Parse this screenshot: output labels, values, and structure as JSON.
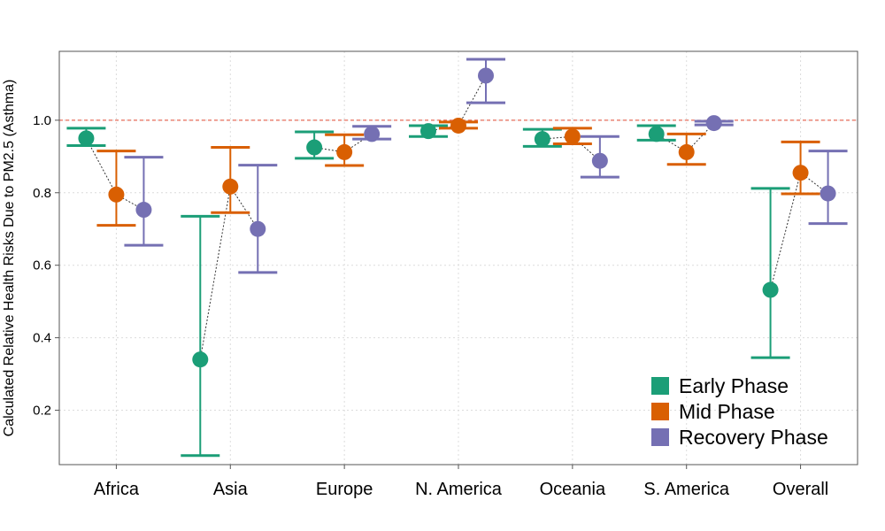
{
  "chart_data": {
    "type": "errorbar",
    "title": "",
    "xlabel": "",
    "ylabel": "Calculated Relative Health Risks Due to PM2.5 (Asthma)",
    "ylim": [
      0.05,
      1.19
    ],
    "yticks": [
      0.2,
      0.4,
      0.6,
      0.8,
      1.0
    ],
    "ytick_labels": [
      "0.2",
      "0.4",
      "0.6",
      "0.8",
      "1.0"
    ],
    "reference_line": 1.0,
    "reference_color": "#e34a33",
    "grid": true,
    "legend_position": "bottom-right",
    "categories": [
      "Africa",
      "Asia",
      "Europe",
      "N. America",
      "Oceania",
      "S. America",
      "Overall"
    ],
    "series": [
      {
        "name": "Early Phase",
        "color": "#1b9e77",
        "values": [
          0.95,
          0.34,
          0.925,
          0.97,
          0.948,
          0.962,
          0.532
        ],
        "lower": [
          0.93,
          0.075,
          0.895,
          0.955,
          0.928,
          0.945,
          0.345
        ],
        "upper": [
          0.978,
          0.735,
          0.968,
          0.985,
          0.975,
          0.985,
          0.812
        ]
      },
      {
        "name": "Mid Phase",
        "color": "#d95f02",
        "values": [
          0.795,
          0.817,
          0.912,
          0.985,
          0.955,
          0.912,
          0.855
        ],
        "lower": [
          0.71,
          0.745,
          0.875,
          0.978,
          0.935,
          0.878,
          0.797
        ],
        "upper": [
          0.915,
          0.925,
          0.96,
          0.995,
          0.978,
          0.962,
          0.94
        ]
      },
      {
        "name": "Recovery Phase",
        "color": "#7570b3",
        "values": [
          0.753,
          0.7,
          0.962,
          1.123,
          0.888,
          0.992,
          0.798
        ],
        "lower": [
          0.655,
          0.58,
          0.948,
          1.048,
          0.843,
          0.987,
          0.715
        ],
        "upper": [
          0.898,
          0.876,
          0.983,
          1.168,
          0.955,
          0.997,
          0.915
        ]
      }
    ]
  }
}
